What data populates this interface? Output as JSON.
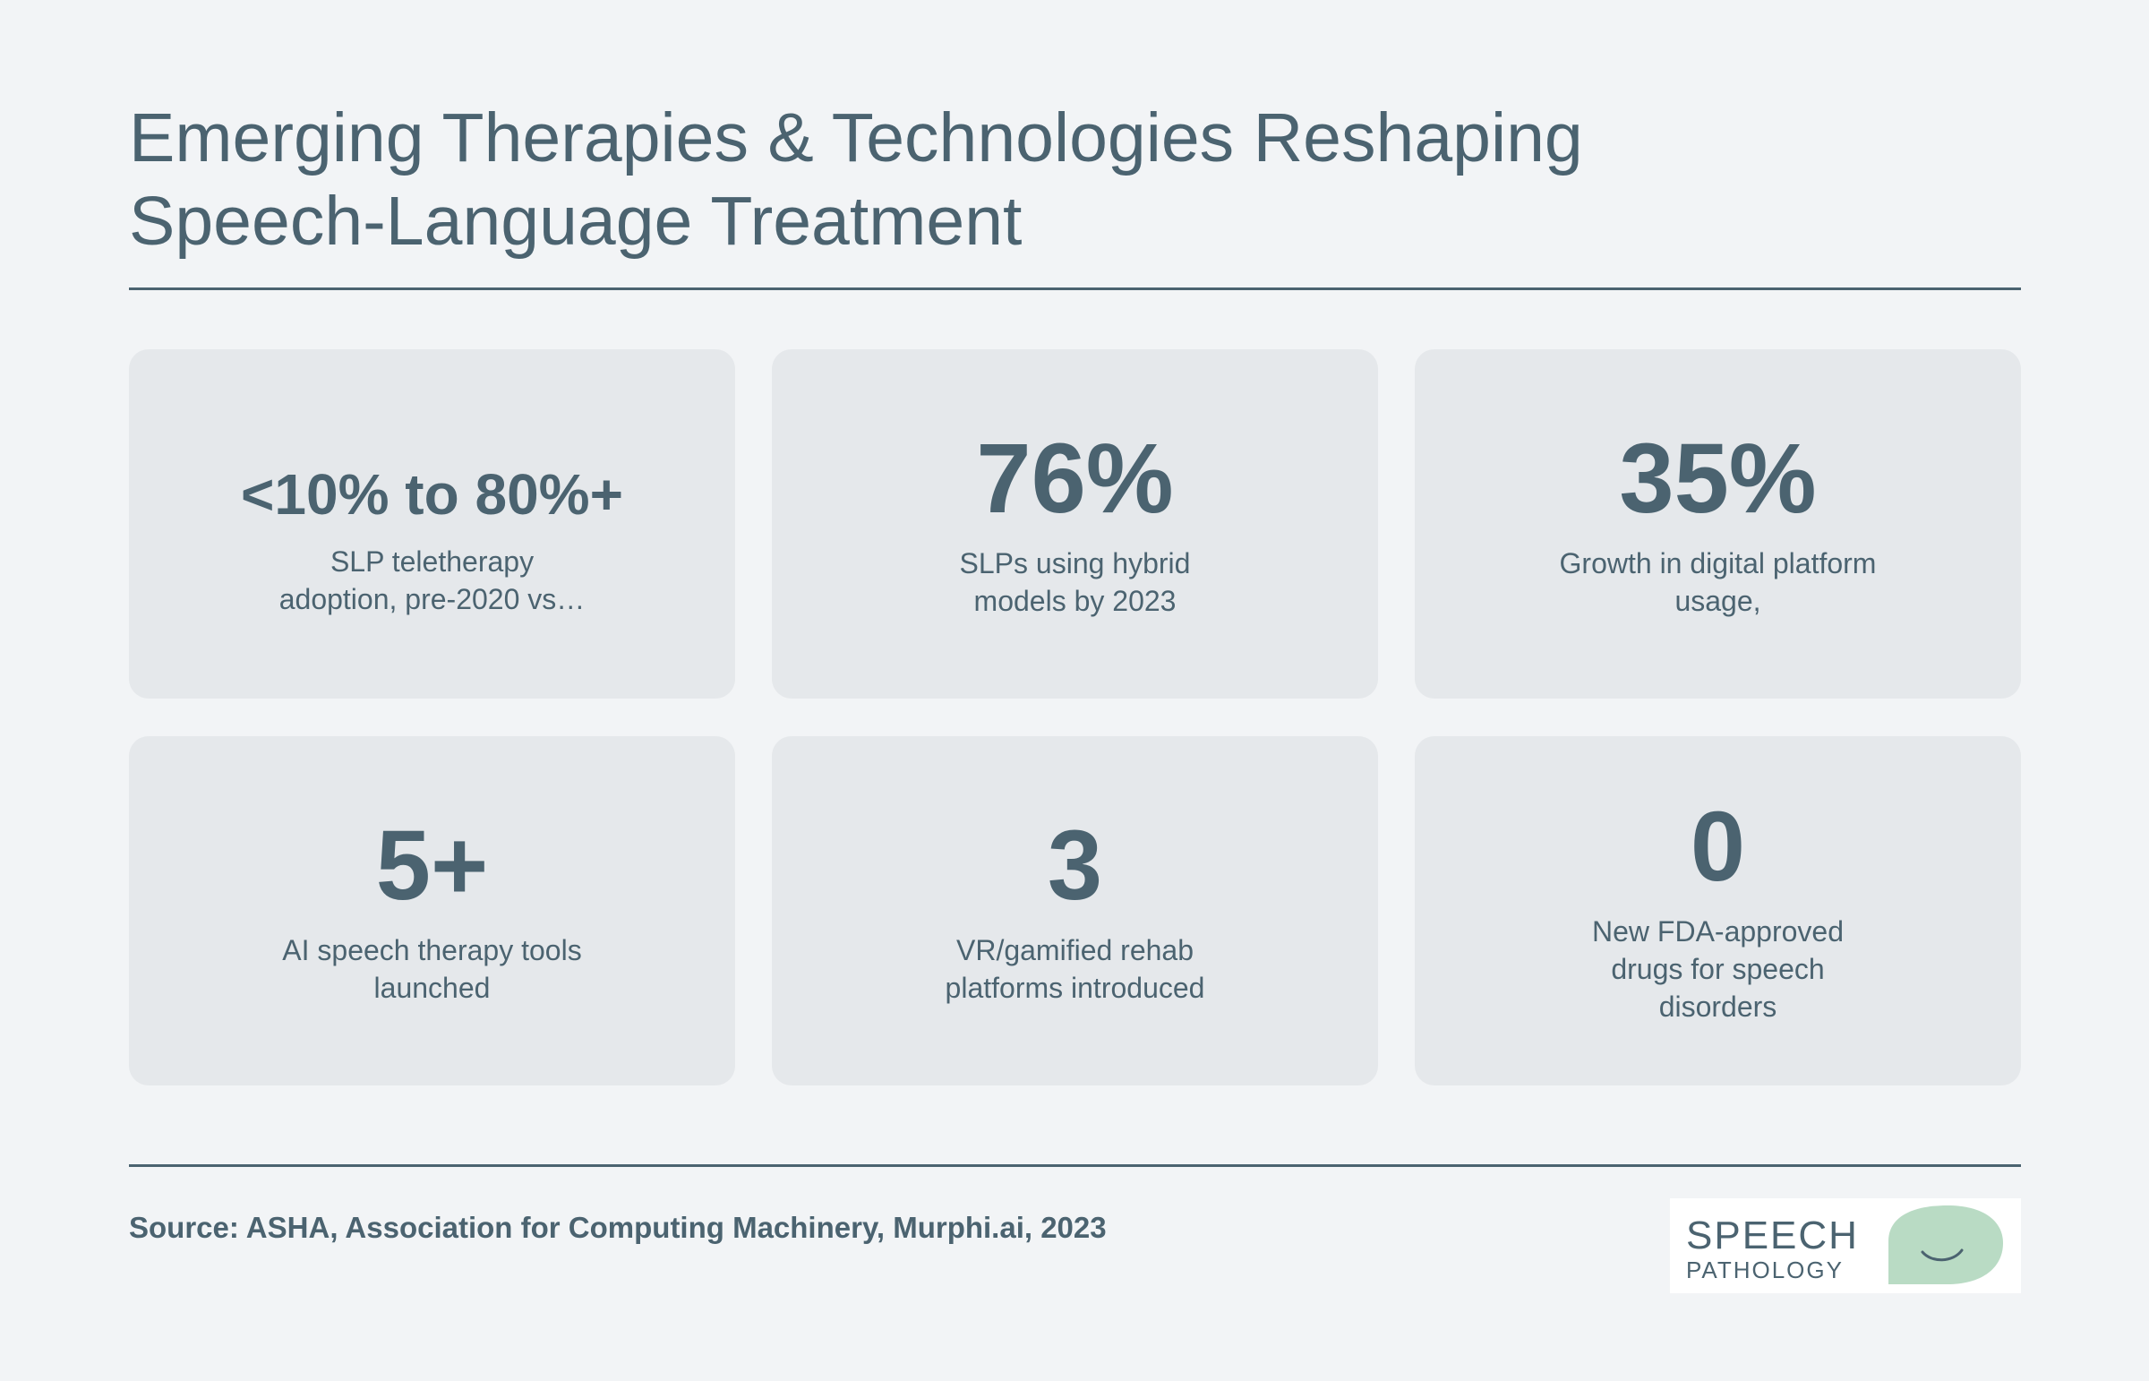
{
  "title": {
    "line1": "Emerging Therapies & Technologies Reshaping",
    "line2": "Speech-Language Treatment"
  },
  "stats": [
    {
      "value": "<10% to 80%+",
      "label": "SLP teletherapy adoption, pre-2020 vs…"
    },
    {
      "value": "76%",
      "label": "SLPs using hybrid models by 2023"
    },
    {
      "value": "35%",
      "label": "Growth in digital platform usage,"
    },
    {
      "value": "5+",
      "label": "AI speech therapy tools launched"
    },
    {
      "value": "3",
      "label": "VR/gamified rehab platforms introduced"
    },
    {
      "value": "0",
      "label": "New FDA-approved drugs for speech disorders"
    }
  ],
  "source": "Source: ASHA, Association for Computing Machinery, Murphi.ai, 2023",
  "logo": {
    "line1": "SPEECH",
    "line2": "PATHOLOGY",
    "bubble_color": "#b9dbc4",
    "text_color": "#4b6370"
  },
  "colors": {
    "background": "#f2f4f6",
    "card": "#e5e8eb",
    "text": "#4b6370"
  }
}
